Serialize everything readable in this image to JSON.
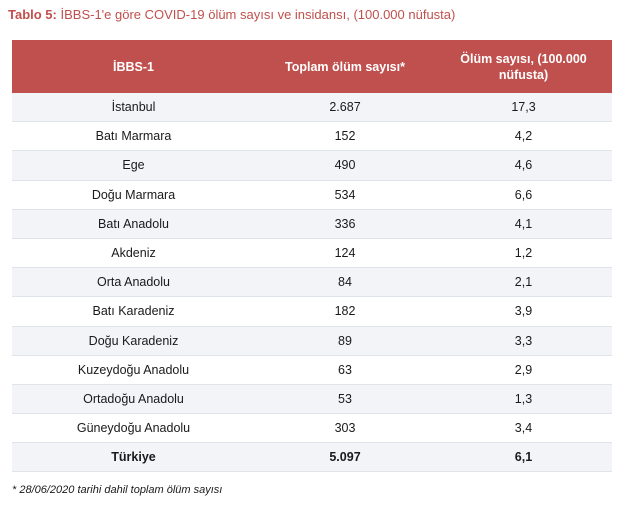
{
  "caption": {
    "label": "Tablo 5:",
    "text": "İBBS-1'e göre COVID-19 ölüm sayısı ve insidansı, (100.000 nüfusta)"
  },
  "table": {
    "headers": [
      "İBBS-1",
      "Toplam ölüm sayısı*",
      "Ölüm sayısı, (100.000 nüfusta)"
    ],
    "rows": [
      [
        "İstanbul",
        "2.687",
        "17,3"
      ],
      [
        "Batı Marmara",
        "152",
        "4,2"
      ],
      [
        "Ege",
        "490",
        "4,6"
      ],
      [
        "Doğu Marmara",
        "534",
        "6,6"
      ],
      [
        "Batı Anadolu",
        "336",
        "4,1"
      ],
      [
        "Akdeniz",
        "124",
        "1,2"
      ],
      [
        "Orta Anadolu",
        "84",
        "2,1"
      ],
      [
        "Batı Karadeniz",
        "182",
        "3,9"
      ],
      [
        "Doğu Karadeniz",
        "89",
        "3,3"
      ],
      [
        "Kuzeydoğu Anadolu",
        "63",
        "2,9"
      ],
      [
        "Ortadoğu Anadolu",
        "53",
        "1,3"
      ],
      [
        "Güneydoğu Anadolu",
        "303",
        "3,4"
      ]
    ],
    "total": [
      "Türkiye",
      "5.097",
      "6,1"
    ]
  },
  "footnote": "* 28/06/2020 tarihi dahil toplam ölüm sayısı",
  "colors": {
    "accent": "#c0504d",
    "stripe": "#f2f4f8",
    "rule": "#dfe3ea"
  }
}
